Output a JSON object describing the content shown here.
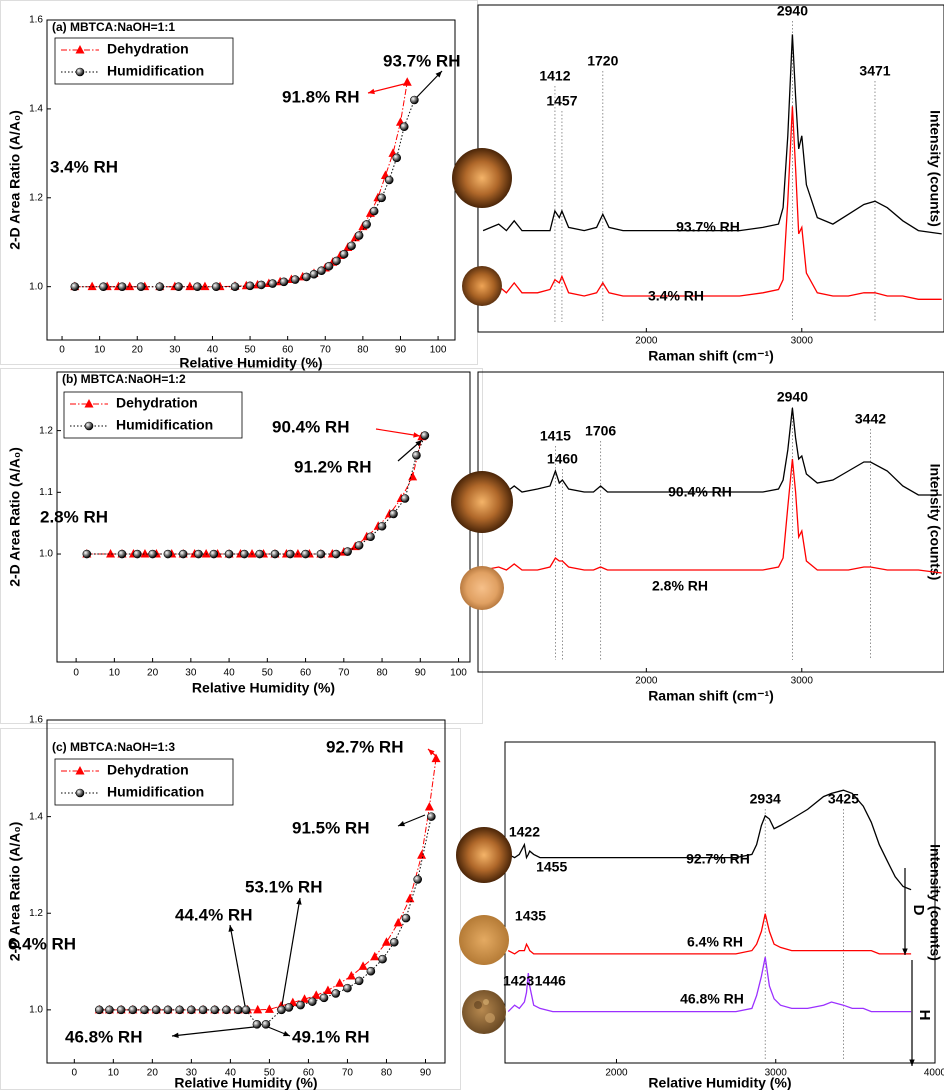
{
  "chart_data": [
    {
      "type": "line",
      "title": "(a) MBTCA:NaOH=1:1",
      "xlabel": "Relative Humidity (%)",
      "ylabel": "2-D Area Ratio (A/A₀)",
      "xlim": [
        -4,
        104.5
      ],
      "xticks": [
        0,
        10,
        20,
        30,
        40,
        50,
        60,
        70,
        80,
        90,
        100
      ],
      "ylim": [
        0.88,
        1.6
      ],
      "yticks": [
        {
          "value": 1,
          "label": "1.0"
        },
        1.2,
        1.4,
        1.6
      ],
      "legend": "upper left",
      "series": [
        {
          "name": "Dehydration",
          "color": "#ff0000",
          "marker": "triangle",
          "linestyle": "dashdot",
          "x": [
            3.4,
            8,
            12,
            15,
            18,
            22,
            26,
            30,
            34,
            38,
            42,
            46,
            49,
            52,
            55,
            58,
            61,
            64,
            67,
            70,
            72,
            74,
            76,
            78,
            80,
            82,
            84,
            86,
            88,
            90,
            91.8
          ],
          "values": [
            1,
            1,
            1,
            1,
            1,
            1,
            1,
            1,
            1,
            1,
            1,
            1.001,
            1.002,
            1.004,
            1.007,
            1.011,
            1.016,
            1.022,
            1.03,
            1.042,
            1.055,
            1.07,
            1.088,
            1.11,
            1.135,
            1.165,
            1.2,
            1.25,
            1.3,
            1.37,
            1.46
          ]
        },
        {
          "name": "Humidification",
          "color": "#000000",
          "marker": "circle",
          "linestyle": "dotted",
          "x": [
            3.4,
            11,
            16,
            21,
            26,
            31,
            36,
            41,
            46,
            50,
            53,
            56,
            59,
            62,
            65,
            67,
            69,
            71,
            73,
            75,
            77,
            79,
            81,
            83,
            85,
            87,
            89,
            91,
            93.7
          ],
          "values": [
            1,
            1,
            1,
            1,
            1,
            1,
            1,
            1,
            1,
            1.002,
            1.004,
            1.007,
            1.011,
            1.016,
            1.022,
            1.028,
            1.036,
            1.046,
            1.058,
            1.073,
            1.092,
            1.115,
            1.14,
            1.17,
            1.2,
            1.24,
            1.29,
            1.36,
            1.42
          ]
        }
      ],
      "annotations": [
        {
          "text": "93.7% RH",
          "color": "#000000"
        },
        {
          "text": "91.8% RH",
          "color": "#ff0000"
        },
        {
          "text": "3.4% RH",
          "color": "#ff0000"
        }
      ]
    },
    {
      "type": "line",
      "xlabel": "Raman shift (cm⁻¹)",
      "ylabel": "Intensity (counts)",
      "xlim": [
        917,
        3915
      ],
      "xticks": [
        2000,
        3000
      ],
      "ylim": [
        0,
        100
      ],
      "x": [
        950,
        1050,
        1100,
        1150,
        1200,
        1300,
        1380,
        1412,
        1440,
        1457,
        1500,
        1600,
        1680,
        1720,
        1760,
        1850,
        2000,
        2200,
        2400,
        2600,
        2750,
        2850,
        2880,
        2910,
        2940,
        2960,
        2980,
        3000,
        3030,
        3100,
        3200,
        3300,
        3400,
        3471,
        3550,
        3650,
        3750,
        3900
      ],
      "series": [
        {
          "name": "93.7% RH",
          "color": "#000000",
          "values": [
            31,
            33,
            31,
            34,
            31,
            31,
            31,
            37,
            35,
            37,
            32,
            31,
            32,
            36,
            32,
            31,
            31,
            31,
            31,
            31,
            32,
            33,
            38,
            60,
            91,
            72,
            56,
            60,
            45,
            35,
            33,
            36,
            39,
            40,
            38,
            34,
            31,
            30
          ]
        },
        {
          "name": "3.4% RH",
          "color": "#ff0000",
          "values": [
            12,
            14,
            12,
            15,
            12,
            12,
            13,
            16,
            15,
            17,
            12,
            11,
            12,
            15,
            12,
            11,
            11,
            11,
            11,
            11,
            12,
            13,
            16,
            40,
            69,
            50,
            30,
            32,
            18,
            12,
            11,
            11,
            12,
            12,
            11,
            11,
            10,
            10
          ]
        }
      ],
      "peaks": [
        1412,
        1457,
        1720,
        2940,
        3471
      ]
    },
    {
      "type": "line",
      "title": "(b) MBTCA:NaOH=1:2",
      "xlabel": "Relative Humidity (%)",
      "ylabel": "2-D Area Ratio (A/A₀)",
      "xlim": [
        -5,
        103
      ],
      "xticks": [
        0,
        10,
        20,
        30,
        40,
        50,
        60,
        70,
        80,
        90,
        100
      ],
      "ylim": [
        0.825,
        1.295
      ],
      "yticks": [
        {
          "value": 1,
          "label": "1.0"
        },
        1.1,
        1.2
      ],
      "legend": "upper left",
      "series": [
        {
          "name": "Dehydration",
          "color": "#ff0000",
          "marker": "triangle",
          "linestyle": "dashdot",
          "x": [
            2.8,
            9,
            12,
            15,
            18,
            21,
            25,
            28,
            31,
            34,
            37,
            40,
            43,
            46,
            49,
            52,
            55,
            58,
            61,
            64,
            67,
            70,
            73,
            76,
            79,
            82,
            85,
            88,
            90.4
          ],
          "values": [
            1,
            1,
            1,
            1,
            1,
            1,
            1,
            1,
            1,
            1,
            1,
            1,
            1,
            1,
            1,
            1,
            1,
            1,
            1,
            1,
            1,
            1.003,
            1.012,
            1.028,
            1.045,
            1.065,
            1.09,
            1.125,
            1.19
          ]
        },
        {
          "name": "Humidification",
          "color": "#000000",
          "marker": "circle",
          "linestyle": "dotted",
          "x": [
            2.8,
            12,
            16,
            20,
            24,
            28,
            32,
            36,
            40,
            44,
            48,
            52,
            56,
            60,
            64,
            68,
            71,
            74,
            77,
            80,
            83,
            86,
            89,
            91.2
          ],
          "values": [
            1,
            1,
            1,
            1,
            1,
            1,
            1,
            1,
            1,
            1,
            1,
            1,
            1,
            1,
            1,
            1,
            1.004,
            1.014,
            1.028,
            1.045,
            1.065,
            1.09,
            1.16,
            1.192
          ]
        }
      ],
      "annotations": [
        {
          "text": "90.4% RH",
          "color": "#ff0000"
        },
        {
          "text": "91.2% RH",
          "color": "#000000"
        },
        {
          "text": "2.8% RH",
          "color": "#ff0000"
        }
      ]
    },
    {
      "type": "line",
      "xlabel": "Raman shift (cm⁻¹)",
      "ylabel": "Intensity (counts)",
      "xlim": [
        917,
        3915
      ],
      "xticks": [
        2000,
        3000
      ],
      "ylim": [
        0,
        100
      ],
      "x": [
        950,
        1050,
        1100,
        1150,
        1200,
        1300,
        1380,
        1415,
        1440,
        1460,
        1500,
        1600,
        1660,
        1706,
        1750,
        1850,
        2000,
        2200,
        2400,
        2600,
        2750,
        2850,
        2880,
        2910,
        2940,
        2960,
        2980,
        3000,
        3030,
        3100,
        3200,
        3300,
        3400,
        3442,
        3550,
        3650,
        3750,
        3900
      ],
      "series": [
        {
          "name": "90.4% RH",
          "color": "#000000",
          "values": [
            60,
            61,
            60,
            62,
            60,
            61,
            62,
            67,
            63,
            64,
            61,
            60,
            60,
            62,
            60,
            60,
            60,
            60,
            60,
            60,
            60,
            61,
            64,
            74,
            88,
            78,
            71,
            72,
            66,
            63,
            64,
            67,
            70,
            70,
            67,
            62,
            59,
            59
          ]
        },
        {
          "name": "2.8% RH",
          "color": "#ff0000",
          "values": [
            34,
            35,
            34,
            36,
            34,
            34,
            35,
            38,
            37,
            37,
            35,
            34,
            34,
            35,
            34,
            34,
            34,
            34,
            34,
            34,
            34,
            35,
            38,
            55,
            71,
            60,
            45,
            47,
            37,
            34,
            34,
            34,
            35,
            35,
            34,
            34,
            34,
            33
          ]
        }
      ],
      "peaks": [
        1415,
        1460,
        1706,
        2940,
        3442
      ]
    },
    {
      "type": "line",
      "title": "(c) MBTCA:NaOH=1:3",
      "xlabel": "Relative Humidity (%)",
      "ylabel": "2-D Area Ratio (A/A₀)",
      "xlim": [
        -7,
        95
      ],
      "xticks": [
        0,
        10,
        20,
        30,
        40,
        50,
        60,
        70,
        80,
        90
      ],
      "ylim": [
        0.89,
        1.6
      ],
      "yticks": [
        {
          "value": 1,
          "label": "1.0"
        },
        1.2,
        1.4,
        1.6
      ],
      "legend": "upper left",
      "series": [
        {
          "name": "Dehydration",
          "color": "#ff0000",
          "marker": "triangle",
          "linestyle": "dashdot",
          "x": [
            6.4,
            9,
            12,
            15,
            18,
            21,
            24,
            27,
            30,
            33,
            36,
            39,
            42,
            44.4,
            47,
            50,
            53,
            56,
            59,
            62,
            65,
            68,
            71,
            74,
            77,
            80,
            83,
            86,
            89,
            91,
            92.7
          ],
          "values": [
            1,
            1,
            1,
            1,
            1,
            1,
            1,
            1,
            1,
            1,
            1,
            1,
            1,
            1,
            1,
            1.001,
            1.008,
            1.015,
            1.022,
            1.03,
            1.04,
            1.055,
            1.07,
            1.09,
            1.11,
            1.14,
            1.18,
            1.23,
            1.32,
            1.42,
            1.52
          ]
        },
        {
          "name": "Humidification",
          "color": "#000000",
          "marker": "circle",
          "linestyle": "dotted",
          "x": [
            6.4,
            9,
            12,
            15,
            18,
            21,
            24,
            27,
            30,
            33,
            36,
            39,
            42,
            44,
            46.8,
            49.1,
            53.1,
            55,
            58,
            61,
            64,
            67,
            70,
            73,
            76,
            79,
            82,
            85,
            88,
            91.5
          ],
          "values": [
            1,
            1,
            1,
            1,
            1,
            1,
            1,
            1,
            1,
            1,
            1,
            1,
            1,
            1,
            0.97,
            0.97,
            1,
            1.005,
            1.01,
            1.017,
            1.025,
            1.034,
            1.045,
            1.06,
            1.08,
            1.105,
            1.14,
            1.19,
            1.27,
            1.4
          ]
        }
      ],
      "annotations": [
        {
          "text": "92.7% RH",
          "color": "#ff0000"
        },
        {
          "text": "91.5% RH",
          "color": "#000000"
        },
        {
          "text": "53.1% RH",
          "color": "#000000"
        },
        {
          "text": "44.4% RH",
          "color": "#000000"
        },
        {
          "text": "46.8% RH",
          "color": "#000000"
        },
        {
          "text": "49.1% RH",
          "color": "#000000"
        },
        {
          "text": "6.4% RH",
          "color": "#ff0000"
        }
      ]
    },
    {
      "type": "line",
      "xlabel": "Relative Humidity (%)",
      "ylabel": "Intensity (counts)",
      "xlim": [
        1300,
        4000
      ],
      "xticks": [
        2000,
        3000,
        4000
      ],
      "ylim": [
        0,
        100
      ],
      "x": [
        1320,
        1360,
        1390,
        1422,
        1435,
        1446,
        1455,
        1480,
        1520,
        1600,
        1700,
        1800,
        1900,
        2000,
        2200,
        2400,
        2600,
        2750,
        2850,
        2880,
        2910,
        2934,
        2960,
        2990,
        3030,
        3100,
        3200,
        3300,
        3350,
        3425,
        3480,
        3550,
        3600,
        3650,
        3700,
        3750,
        3800,
        3850
      ],
      "series": [
        {
          "name": "92.7% RH",
          "color": "#000000",
          "peaks": [
            1422,
            1455
          ],
          "values": [
            65,
            64,
            65,
            68,
            64,
            65,
            66,
            65,
            64,
            64,
            64,
            64,
            64,
            64,
            64,
            64,
            64,
            64,
            65,
            68,
            74,
            77,
            76,
            73,
            74,
            76,
            79,
            83,
            84,
            85,
            84,
            80,
            75,
            68,
            63,
            58,
            55,
            54
          ]
        },
        {
          "name": "6.4% RH",
          "color": "#ff0000",
          "peaks": [
            1435
          ],
          "values": [
            35,
            34,
            35,
            35,
            37,
            36,
            35,
            34,
            34,
            34,
            34,
            34,
            34,
            34,
            34,
            34,
            34,
            34,
            35,
            37,
            41,
            46.5,
            41,
            37,
            36,
            35,
            35,
            35,
            35,
            35,
            35,
            35,
            35,
            34,
            34,
            34,
            34,
            34
          ]
        },
        {
          "name": "46.8% RH",
          "color": "#9b30ff",
          "peaks": [
            1423,
            1446
          ],
          "values": [
            16,
            18,
            17,
            19,
            22,
            28,
            24,
            18,
            17,
            16,
            16,
            16,
            16,
            16,
            16,
            16,
            16,
            16,
            17,
            21,
            27,
            33,
            24,
            20,
            18,
            17,
            17,
            18,
            19,
            18,
            17,
            17,
            16,
            16,
            16,
            16,
            16,
            16
          ]
        }
      ],
      "peaks": [
        2934,
        3425
      ],
      "annotations": [
        {
          "text": "D",
          "color": "#000000"
        },
        {
          "text": "H",
          "color": "#000000"
        }
      ]
    }
  ]
}
